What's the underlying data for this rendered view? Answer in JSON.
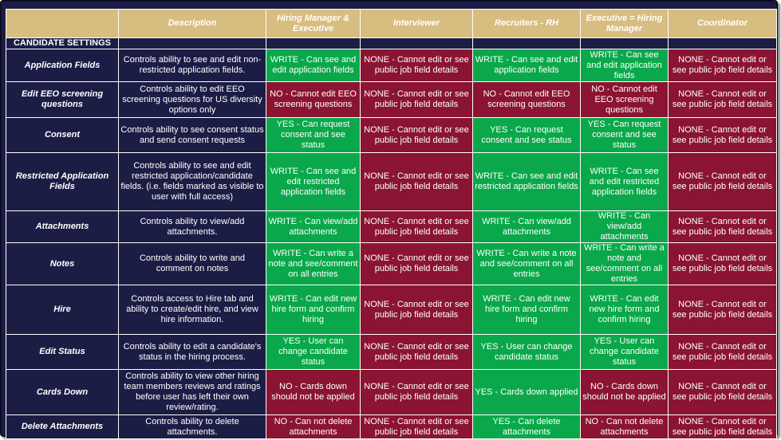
{
  "headers": {
    "setting": "",
    "description": "Description",
    "hiring_manager_executive": "Hiring Manager & Executive",
    "interviewer": "Interviewer",
    "recruiters_rh": "Recruiters - RH",
    "executive_hiring_manager": "Executive = Hiring Manager",
    "coordinator": "Coordinator"
  },
  "section_label": "CANDIDATE SETTINGS",
  "colors": {
    "navy": "#1c1d45",
    "gold": "#d8bd80",
    "green": "#0aa84a",
    "red": "#8a1431"
  },
  "rows": [
    {
      "setting": "Application Fields",
      "description": "Controls ability to see and edit non-restricted application fields.",
      "cells": [
        {
          "text": "WRITE - Can see and edit application fields",
          "status": "green"
        },
        {
          "text": "NONE - Cannot edit or see public job field details",
          "status": "red"
        },
        {
          "text": "WRITE - Can see and edit application fields",
          "status": "green"
        },
        {
          "text": "WRITE - Can see and edit application fields",
          "status": "green"
        },
        {
          "text": "NONE - Cannot edit or see public job field details",
          "status": "red"
        }
      ]
    },
    {
      "setting": "Edit EEO screening questions",
      "description": "Controls ability to edit EEO screening questions for US diversity options only",
      "cells": [
        {
          "text": "NO - Cannot edit EEO screening questions",
          "status": "red"
        },
        {
          "text": "NONE - Cannot edit or see public job field details",
          "status": "red"
        },
        {
          "text": "NO - Cannot edit EEO screening questions",
          "status": "red"
        },
        {
          "text": "NO - Cannot edit EEO screening questions",
          "status": "red"
        },
        {
          "text": "NONE - Cannot edit or see public job field details",
          "status": "red"
        }
      ]
    },
    {
      "setting": "Consent",
      "description": "Controls ability to see consent status and send consent requests",
      "cells": [
        {
          "text": "YES - Can request consent and see status",
          "status": "green"
        },
        {
          "text": "NONE - Cannot edit or see public job field details",
          "status": "red"
        },
        {
          "text": "YES - Can request consent and see status",
          "status": "green"
        },
        {
          "text": "YES - Can request consent and see status",
          "status": "green"
        },
        {
          "text": "NONE - Cannot edit or see public job field details",
          "status": "red"
        }
      ]
    },
    {
      "setting": "Restricted Application Fields",
      "description": "Controls ability to see and edit restricted application/candidate fields. (i.e. fields marked as visible to user with full access)",
      "cells": [
        {
          "text": "WRITE - Can see and edit restricted application fields",
          "status": "green"
        },
        {
          "text": "NONE - Cannot edit or see public job field details",
          "status": "red"
        },
        {
          "text": "WRITE - Can see and edit restricted application fields",
          "status": "green"
        },
        {
          "text": "WRITE - Can see and edit restricted application fields",
          "status": "green"
        },
        {
          "text": "NONE - Cannot edit or see public job field details",
          "status": "red"
        }
      ]
    },
    {
      "setting": "Attachments",
      "description": "Controls ability to view/add attachments.",
      "cells": [
        {
          "text": "WRITE - Can view/add attachments",
          "status": "green"
        },
        {
          "text": "NONE - Cannot edit or see public job field details",
          "status": "red"
        },
        {
          "text": "WRITE - Can view/add attachments",
          "status": "green"
        },
        {
          "text": "WRITE - Can view/add attachments",
          "status": "green"
        },
        {
          "text": "NONE - Cannot edit or see public job field details",
          "status": "red"
        }
      ]
    },
    {
      "setting": "Notes",
      "description": "Controls ability to write and comment on notes",
      "cells": [
        {
          "text": "WRITE - Can write a note and see/comment on all entries",
          "status": "green"
        },
        {
          "text": "NONE - Cannot edit or see public job field details",
          "status": "red"
        },
        {
          "text": "WRITE - Can write a note and see/comment on all entries",
          "status": "green"
        },
        {
          "text": "WRITE - Can write a note and see/comment on all entries",
          "status": "green"
        },
        {
          "text": "NONE - Cannot edit or see public job field details",
          "status": "red"
        }
      ]
    },
    {
      "setting": "Hire",
      "description": "Controls access to Hire tab and ability to create/edit hire, and view hire information.",
      "cells": [
        {
          "text": "WRITE - Can edit new hire form and confirm hiring",
          "status": "green"
        },
        {
          "text": "NONE - Cannot edit or see public job field details",
          "status": "red"
        },
        {
          "text": "WRITE - Can edit new hire form and confirm hiring",
          "status": "green"
        },
        {
          "text": "WRITE - Can edit new hire form and confirm hiring",
          "status": "green"
        },
        {
          "text": "NONE - Cannot edit or see public job field details",
          "status": "red"
        }
      ]
    },
    {
      "setting": "Edit Status",
      "description": "Controls ability to edit a candidate's status in the hiring process.",
      "cells": [
        {
          "text": "YES - User can change candidate status",
          "status": "green"
        },
        {
          "text": "NONE - Cannot edit or see public job field details",
          "status": "red"
        },
        {
          "text": "YES - User can change candidate status",
          "status": "green"
        },
        {
          "text": "YES - User can change candidate status",
          "status": "green"
        },
        {
          "text": "NONE - Cannot edit or see public job field details",
          "status": "red"
        }
      ]
    },
    {
      "setting": "Cards Down",
      "description": "Controls ability to view other hiring team members reviews and ratings before user has left their own review/rating.",
      "cells": [
        {
          "text": "NO - Cards down should not be applied",
          "status": "red"
        },
        {
          "text": "NONE - Cannot edit or see public job field details",
          "status": "red"
        },
        {
          "text": "YES - Cards down applied",
          "status": "green"
        },
        {
          "text": "NO - Cards down should not be applied",
          "status": "red"
        },
        {
          "text": "NONE - Cannot edit or see public job field details",
          "status": "red"
        }
      ]
    },
    {
      "setting": "Delete Attachments",
      "description": "Controls ability to delete attachments.",
      "cells": [
        {
          "text": "NO - Can not delete attachments",
          "status": "red"
        },
        {
          "text": "NONE - Cannot edit or see public job field details",
          "status": "red"
        },
        {
          "text": "YES - Can delete attachments",
          "status": "green"
        },
        {
          "text": "NO - Can not delete attachments",
          "status": "red"
        },
        {
          "text": "NONE - Cannot edit or see public job field details",
          "status": "red"
        }
      ]
    }
  ]
}
